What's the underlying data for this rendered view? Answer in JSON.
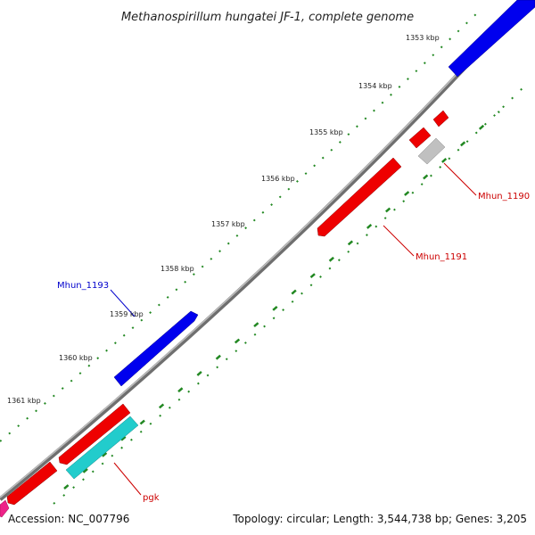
{
  "title": "Methanospirillum hungatei JF-1, complete genome",
  "footer": {
    "accession": "Accession: NC_007796",
    "summary": "Topology: circular; Length: 3,544,738 bp; Genes: 3,205"
  },
  "ticks": [
    {
      "label": "1353 kbp"
    },
    {
      "label": "1354 kbp"
    },
    {
      "label": "1355 kbp"
    },
    {
      "label": "1356 kbp"
    },
    {
      "label": "1357 kbp"
    },
    {
      "label": "1358 kbp"
    },
    {
      "label": "1359 kbp"
    },
    {
      "label": "1360 kbp"
    },
    {
      "label": "1361 kbp"
    }
  ],
  "gene_labels": [
    {
      "text": "Mhun_1190",
      "color": "#cc0000"
    },
    {
      "text": "Mhun_1191",
      "color": "#cc0000"
    },
    {
      "text": "Mhun_1193",
      "color": "#0000cc"
    },
    {
      "text": "pgk",
      "color": "#cc0000"
    }
  ],
  "colors": {
    "backbone": "#8c8c8c",
    "forward_cds": "#0000ee",
    "reverse_cds": "#ee0000",
    "rna": "#22cccc",
    "other": "#c0c0c0",
    "gc_skew": "#228822",
    "magenta_feature": "#ee2288"
  }
}
